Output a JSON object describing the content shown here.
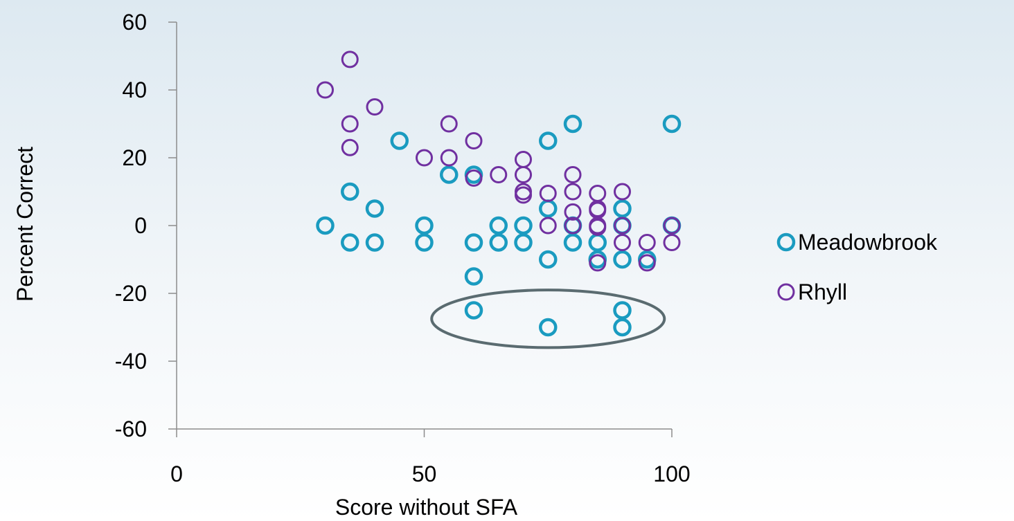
{
  "chart_data": {
    "type": "scatter",
    "xlabel": "Score without SFA",
    "ylabel": "Percent Correct",
    "xlim": [
      0,
      100
    ],
    "ylim": [
      -60,
      60
    ],
    "x_ticks": [
      0,
      50,
      100
    ],
    "y_ticks": [
      60,
      40,
      20,
      0,
      -20,
      -40,
      -60
    ],
    "grid": false,
    "legend": "right",
    "series": [
      {
        "name": "Meadowbrook",
        "color": "#1a9bc0",
        "marker": "open-circle",
        "points": [
          [
            30,
            0
          ],
          [
            35,
            10
          ],
          [
            35,
            -5
          ],
          [
            40,
            5
          ],
          [
            40,
            -5
          ],
          [
            45,
            25
          ],
          [
            50,
            0
          ],
          [
            50,
            -5
          ],
          [
            55,
            15
          ],
          [
            60,
            15
          ],
          [
            60,
            -5
          ],
          [
            60,
            -15
          ],
          [
            60,
            -25
          ],
          [
            65,
            0
          ],
          [
            65,
            -5
          ],
          [
            70,
            0
          ],
          [
            70,
            -5
          ],
          [
            75,
            25
          ],
          [
            75,
            5
          ],
          [
            75,
            -10
          ],
          [
            75,
            -30
          ],
          [
            80,
            30
          ],
          [
            80,
            0
          ],
          [
            80,
            -5
          ],
          [
            85,
            -5
          ],
          [
            85,
            -10
          ],
          [
            90,
            5
          ],
          [
            90,
            0
          ],
          [
            90,
            -10
          ],
          [
            90,
            -25
          ],
          [
            90,
            -30
          ],
          [
            95,
            -10
          ],
          [
            100,
            30
          ],
          [
            100,
            0
          ]
        ]
      },
      {
        "name": "Rhyll",
        "color": "#7030a0",
        "marker": "open-circle",
        "points": [
          [
            30,
            40
          ],
          [
            35,
            49
          ],
          [
            35,
            30
          ],
          [
            35,
            23
          ],
          [
            40,
            35
          ],
          [
            50,
            20
          ],
          [
            55,
            30
          ],
          [
            55,
            20
          ],
          [
            60,
            25
          ],
          [
            60,
            14
          ],
          [
            65,
            15
          ],
          [
            70,
            19.5
          ],
          [
            70,
            15
          ],
          [
            70,
            10
          ],
          [
            70,
            9
          ],
          [
            75,
            9.5
          ],
          [
            75,
            0
          ],
          [
            80,
            15
          ],
          [
            80,
            10
          ],
          [
            80,
            4
          ],
          [
            80,
            0
          ],
          [
            85,
            9.5
          ],
          [
            85,
            5
          ],
          [
            85,
            4.5
          ],
          [
            85,
            0
          ],
          [
            85,
            -0.5
          ],
          [
            85,
            -11
          ],
          [
            90,
            10
          ],
          [
            90,
            0
          ],
          [
            90,
            -5
          ],
          [
            95,
            -5
          ],
          [
            95,
            -11
          ],
          [
            100,
            0
          ],
          [
            100,
            -5
          ]
        ]
      }
    ],
    "annotations": [
      {
        "type": "ellipse",
        "cx": 75,
        "cy": -27.5,
        "rx": 23.5,
        "ry": 8.5,
        "color": "#5a6b70"
      }
    ]
  }
}
